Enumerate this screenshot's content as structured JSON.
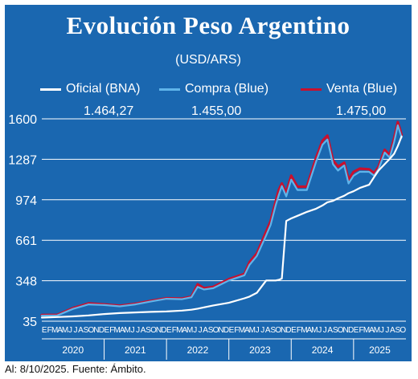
{
  "title": "Evolución Peso Argentino",
  "unit": "(USD/ARS)",
  "legend": [
    {
      "label": "Oficial (BNA)",
      "color": "#ffffff"
    },
    {
      "label": "Compra (Blue)",
      "color": "#5fb4ea"
    },
    {
      "label": "Venta (Blue)",
      "color": "#c8102e"
    }
  ],
  "latest_values": {
    "oficial": "1.464,27",
    "compra": "1.455,00",
    "venta": "1.475,00"
  },
  "footer": "Al: 8/10/2025. Fuente: Ámbito.",
  "chart_data": {
    "type": "line",
    "ylim": [
      35,
      1600
    ],
    "yticks": [
      "1600",
      "1287",
      "974",
      "661",
      "348",
      "35"
    ],
    "month_letters": [
      "E",
      "F",
      "M",
      "A",
      "M",
      "J",
      "J",
      "A",
      "S",
      "O",
      "N",
      "D"
    ],
    "last_year_month_count": 10,
    "years": [
      "2020",
      "2021",
      "2022",
      "2023",
      "2024",
      "2025"
    ],
    "x": [
      2020.0,
      2020.25,
      2020.5,
      2020.75,
      2021.0,
      2021.25,
      2021.5,
      2021.75,
      2022.0,
      2022.25,
      2022.4,
      2022.5,
      2022.6,
      2022.75,
      2023.0,
      2023.25,
      2023.33,
      2023.45,
      2023.6,
      2023.67,
      2023.75,
      2023.8,
      2023.85,
      2023.92,
      2024.0,
      2024.1,
      2024.25,
      2024.4,
      2024.5,
      2024.58,
      2024.67,
      2024.75,
      2024.85,
      2024.92,
      2025.0,
      2025.1,
      2025.25,
      2025.33,
      2025.4,
      2025.5,
      2025.58,
      2025.65,
      2025.71,
      2025.77
    ],
    "series": [
      {
        "name": "Oficial (BNA)",
        "values": [
          63,
          67,
          72,
          80,
          90,
          98,
          103,
          107,
          110,
          117,
          124,
          132,
          142,
          157,
          177,
          212,
          225,
          255,
          350,
          350,
          350,
          355,
          365,
          810,
          830,
          850,
          880,
          905,
          930,
          955,
          965,
          985,
          1005,
          1025,
          1040,
          1065,
          1090,
          1150,
          1200,
          1250,
          1290,
          1330,
          1390,
          1464.27
        ]
      },
      {
        "name": "Compra (Blue)",
        "values": [
          78,
          80,
          130,
          165,
          160,
          150,
          165,
          188,
          208,
          205,
          220,
          300,
          280,
          290,
          350,
          390,
          470,
          540,
          700,
          780,
          930,
          1010,
          1080,
          1000,
          1130,
          1050,
          1050,
          1270,
          1400,
          1440,
          1250,
          1200,
          1240,
          1100,
          1160,
          1190,
          1190,
          1160,
          1210,
          1340,
          1300,
          1420,
          1550,
          1455
        ]
      },
      {
        "name": "Venta (Blue)",
        "values": [
          82,
          84,
          136,
          172,
          165,
          155,
          170,
          192,
          212,
          210,
          225,
          320,
          290,
          300,
          360,
          400,
          490,
          560,
          730,
          810,
          960,
          1050,
          1100,
          1030,
          1160,
          1075,
          1075,
          1300,
          1430,
          1470,
          1280,
          1230,
          1260,
          1130,
          1190,
          1215,
          1210,
          1180,
          1230,
          1360,
          1320,
          1450,
          1575,
          1475
        ]
      }
    ]
  }
}
